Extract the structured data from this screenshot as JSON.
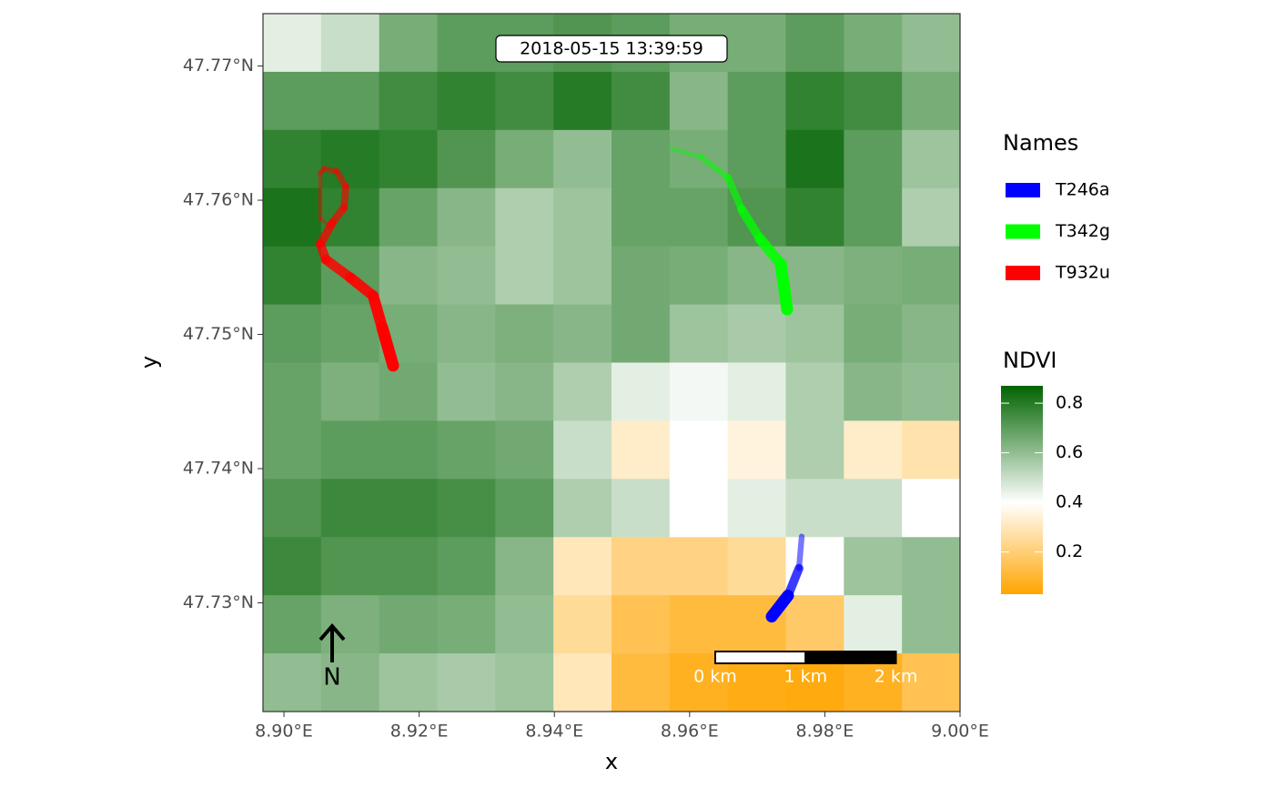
{
  "map": {
    "type": "raster-tracks",
    "timestamp": "2018-05-15 13:39:59",
    "x_label": "x",
    "y_label": "y",
    "xlim": [
      8.8969,
      9.0
    ],
    "ylim": [
      47.7219,
      47.7739
    ],
    "xticks": [
      {
        "value": 8.9,
        "label": "8.90°E"
      },
      {
        "value": 8.92,
        "label": "8.92°E"
      },
      {
        "value": 8.94,
        "label": "8.94°E"
      },
      {
        "value": 8.96,
        "label": "8.96°E"
      },
      {
        "value": 8.98,
        "label": "8.98°E"
      },
      {
        "value": 9.0,
        "label": "9.00°E"
      }
    ],
    "yticks": [
      {
        "value": 47.73,
        "label": "47.73°N"
      },
      {
        "value": 47.74,
        "label": "47.74°N"
      },
      {
        "value": 47.75,
        "label": "47.75°N"
      },
      {
        "value": 47.76,
        "label": "47.76°N"
      },
      {
        "value": 47.77,
        "label": "47.77°N"
      }
    ],
    "raster": {
      "name": "NDVI",
      "clim": [
        0.03,
        0.87
      ],
      "colors": [
        "#ffa500",
        "#ffffff",
        "#006400"
      ],
      "color_stops": [
        0.03,
        0.4,
        0.87
      ],
      "ticks": [
        0.2,
        0.4,
        0.6,
        0.8
      ],
      "values": [
        [
          0.45,
          0.5,
          0.65,
          0.7,
          0.7,
          0.72,
          0.7,
          0.65,
          0.65,
          0.7,
          0.65,
          0.6
        ],
        [
          0.7,
          0.7,
          0.75,
          0.78,
          0.75,
          0.8,
          0.75,
          0.62,
          0.7,
          0.78,
          0.75,
          0.65
        ],
        [
          0.78,
          0.8,
          0.78,
          0.72,
          0.65,
          0.6,
          0.68,
          0.65,
          0.7,
          0.82,
          0.7,
          0.58
        ],
        [
          0.82,
          0.78,
          0.68,
          0.62,
          0.55,
          0.58,
          0.68,
          0.68,
          0.72,
          0.78,
          0.7,
          0.55
        ],
        [
          0.78,
          0.7,
          0.62,
          0.6,
          0.55,
          0.58,
          0.66,
          0.65,
          0.62,
          0.62,
          0.64,
          0.65
        ],
        [
          0.7,
          0.68,
          0.65,
          0.62,
          0.64,
          0.62,
          0.66,
          0.58,
          0.56,
          0.58,
          0.65,
          0.62
        ],
        [
          0.68,
          0.64,
          0.66,
          0.6,
          0.62,
          0.55,
          0.45,
          0.42,
          0.45,
          0.55,
          0.62,
          0.6
        ],
        [
          0.68,
          0.7,
          0.7,
          0.68,
          0.66,
          0.5,
          0.32,
          0.4,
          0.35,
          0.55,
          0.32,
          0.28
        ],
        [
          0.72,
          0.76,
          0.76,
          0.74,
          0.7,
          0.55,
          0.5,
          0.4,
          0.45,
          0.5,
          0.5,
          0.4
        ],
        [
          0.76,
          0.72,
          0.72,
          0.7,
          0.62,
          0.3,
          0.22,
          0.22,
          0.25,
          0.4,
          0.58,
          0.6
        ],
        [
          0.68,
          0.64,
          0.66,
          0.65,
          0.6,
          0.25,
          0.15,
          0.12,
          0.12,
          0.18,
          0.45,
          0.6
        ],
        [
          0.6,
          0.62,
          0.58,
          0.56,
          0.58,
          0.3,
          0.12,
          0.08,
          0.06,
          0.05,
          0.08,
          0.15
        ]
      ]
    },
    "legend_title": "Names",
    "series": [
      {
        "name": "T246a",
        "color": "#0000ff",
        "lon": [
          8.97658,
          8.97618,
          8.97456,
          8.97214
        ],
        "lat": [
          47.73494,
          47.73257,
          47.73054,
          47.72898
        ]
      },
      {
        "name": "T342g",
        "color": "#00ff00",
        "lon": [
          8.95734,
          8.96164,
          8.96568,
          8.9677,
          8.97039,
          8.97349,
          8.97443
        ],
        "lat": [
          47.76384,
          47.76323,
          47.76168,
          47.75931,
          47.75714,
          47.75525,
          47.75186
        ]
      },
      {
        "name": "T932u",
        "color": "#ff0000",
        "lon": [
          8.907,
          8.90538,
          8.90538,
          8.90592,
          8.90781,
          8.90915,
          8.90888,
          8.90713,
          8.90538,
          8.90619,
          8.90983,
          8.91319,
          8.91454,
          8.91615
        ],
        "lat": [
          47.75795,
          47.75863,
          47.76201,
          47.76235,
          47.76215,
          47.761,
          47.75944,
          47.75829,
          47.75673,
          47.75558,
          47.75423,
          47.75288,
          47.75051,
          47.74767
        ]
      }
    ],
    "north_arrow": "N",
    "scalebar": {
      "ticks": [
        {
          "value": 0,
          "label": "0 km"
        },
        {
          "value": 1,
          "label": "1 km"
        },
        {
          "value": 2,
          "label": "2 km"
        }
      ]
    }
  }
}
